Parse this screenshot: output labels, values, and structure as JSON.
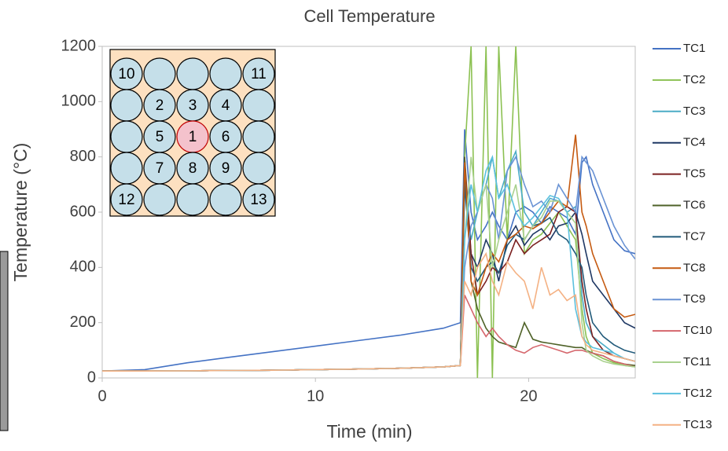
{
  "chart_data": {
    "type": "line",
    "title": "Cell Temperature",
    "x_label": "Time (min)",
    "y_label": "Temperature (°C)",
    "x": [
      0,
      2,
      4,
      6,
      8,
      10,
      12,
      14,
      16,
      16.8,
      17,
      17.3,
      17.6,
      18,
      18.3,
      18.6,
      19,
      19.4,
      19.8,
      20.2,
      20.6,
      21,
      21.4,
      21.8,
      22.2,
      22.5,
      22.7,
      23,
      23.5,
      24,
      24.5,
      25
    ],
    "xlim": [
      0,
      25
    ],
    "xticks": [
      0,
      10,
      20
    ],
    "ylim": [
      0,
      1200
    ],
    "yticks": [
      0,
      200,
      400,
      600,
      800,
      1000,
      1200
    ],
    "grid": false,
    "legend": "right",
    "series": [
      {
        "name": "TC1",
        "color": "#4472c4",
        "values": [
          25,
          30,
          55,
          75,
          95,
          115,
          135,
          155,
          180,
          200,
          900,
          600,
          500,
          550,
          600,
          550,
          500,
          600,
          620,
          600,
          560,
          620,
          600,
          580,
          520,
          780,
          800,
          700,
          600,
          500,
          460,
          450
        ]
      },
      {
        "name": "TC2",
        "color": "#8cc152",
        "values": [
          25,
          25,
          26,
          27,
          28,
          30,
          32,
          35,
          40,
          45,
          800,
          1200,
          0,
          1200,
          0,
          1200,
          500,
          1200,
          450,
          500,
          520,
          560,
          600,
          550,
          500,
          250,
          150,
          90,
          70,
          55,
          45,
          40
        ]
      },
      {
        "name": "TC3",
        "color": "#4bacc6",
        "values": [
          25,
          25,
          26,
          27,
          28,
          30,
          32,
          35,
          40,
          45,
          700,
          500,
          600,
          700,
          800,
          650,
          750,
          820,
          600,
          550,
          600,
          650,
          640,
          600,
          620,
          300,
          200,
          150,
          120,
          90,
          70,
          60
        ]
      },
      {
        "name": "TC4",
        "color": "#1f3864",
        "values": [
          25,
          25,
          26,
          27,
          28,
          30,
          32,
          35,
          40,
          45,
          750,
          450,
          400,
          500,
          450,
          350,
          500,
          550,
          480,
          520,
          540,
          500,
          550,
          560,
          600,
          520,
          450,
          350,
          300,
          250,
          200,
          180
        ]
      },
      {
        "name": "TC5",
        "color": "#7b2020",
        "values": [
          25,
          25,
          26,
          27,
          28,
          30,
          32,
          35,
          40,
          45,
          800,
          450,
          300,
          350,
          400,
          380,
          420,
          500,
          450,
          480,
          500,
          520,
          600,
          620,
          600,
          350,
          250,
          150,
          100,
          80,
          70,
          60
        ]
      },
      {
        "name": "TC6",
        "color": "#4f6228",
        "values": [
          25,
          25,
          26,
          27,
          28,
          30,
          32,
          35,
          40,
          45,
          800,
          350,
          250,
          180,
          150,
          130,
          120,
          110,
          200,
          140,
          130,
          125,
          120,
          115,
          110,
          110,
          100,
          90,
          80,
          60,
          50,
          45
        ]
      },
      {
        "name": "TC7",
        "color": "#215a7a",
        "values": [
          25,
          25,
          26,
          27,
          28,
          30,
          32,
          35,
          40,
          45,
          700,
          400,
          350,
          400,
          420,
          380,
          480,
          520,
          500,
          550,
          560,
          580,
          520,
          500,
          450,
          400,
          300,
          200,
          150,
          120,
          100,
          90
        ]
      },
      {
        "name": "TC8",
        "color": "#c55a11",
        "values": [
          25,
          25,
          26,
          27,
          28,
          30,
          32,
          35,
          40,
          45,
          780,
          350,
          300,
          400,
          450,
          420,
          500,
          520,
          550,
          540,
          560,
          600,
          640,
          620,
          880,
          600,
          550,
          450,
          350,
          250,
          220,
          230
        ]
      },
      {
        "name": "TC9",
        "color": "#6a93d4",
        "values": [
          25,
          25,
          26,
          27,
          28,
          30,
          32,
          35,
          40,
          45,
          400,
          550,
          600,
          700,
          650,
          500,
          750,
          800,
          700,
          620,
          640,
          600,
          700,
          650,
          600,
          800,
          780,
          750,
          650,
          550,
          480,
          430
        ]
      },
      {
        "name": "TC10",
        "color": "#d5666c",
        "values": [
          25,
          25,
          26,
          27,
          28,
          30,
          32,
          35,
          40,
          45,
          300,
          250,
          200,
          150,
          180,
          150,
          120,
          100,
          90,
          110,
          120,
          110,
          100,
          90,
          100,
          100,
          95,
          90,
          80,
          60,
          50,
          40
        ]
      },
      {
        "name": "TC11",
        "color": "#a9d18e",
        "values": [
          25,
          25,
          26,
          27,
          28,
          30,
          32,
          35,
          40,
          45,
          500,
          800,
          600,
          700,
          400,
          500,
          600,
          700,
          500,
          550,
          580,
          640,
          640,
          600,
          560,
          200,
          100,
          80,
          60,
          50,
          45,
          40
        ]
      },
      {
        "name": "TC12",
        "color": "#5bc0de",
        "values": [
          25,
          25,
          26,
          27,
          28,
          30,
          32,
          35,
          40,
          45,
          500,
          700,
          600,
          750,
          800,
          650,
          700,
          600,
          550,
          580,
          620,
          660,
          650,
          600,
          250,
          150,
          130,
          110,
          100,
          90,
          70,
          60
        ]
      },
      {
        "name": "TC13",
        "color": "#f4b183",
        "values": [
          25,
          25,
          26,
          27,
          28,
          30,
          32,
          35,
          40,
          45,
          350,
          300,
          400,
          450,
          350,
          300,
          420,
          380,
          350,
          250,
          400,
          300,
          320,
          280,
          300,
          150,
          120,
          100,
          90,
          80,
          70,
          60
        ]
      }
    ],
    "inset": {
      "highlight": "1",
      "cells": [
        [
          "10",
          null,
          null,
          null,
          "11"
        ],
        [
          null,
          "2",
          "3",
          "4",
          null
        ],
        [
          null,
          "5",
          "1",
          "6",
          null
        ],
        [
          null,
          "7",
          "8",
          "9",
          null
        ],
        [
          "12",
          null,
          null,
          null,
          "13"
        ]
      ]
    }
  }
}
